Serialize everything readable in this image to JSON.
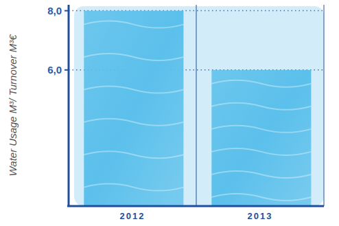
{
  "chart_data": {
    "type": "bar",
    "y_label": "Water Usage M³/ Turnover M³€",
    "categories": [
      "2012",
      "2013"
    ],
    "values": [
      8.0,
      6.0
    ],
    "color": "#5bc0eb",
    "ylim": [
      1.4,
      8.2
    ],
    "yticks": [
      {
        "value": 6,
        "label": "6,0"
      },
      {
        "value": 8,
        "label": "8,0"
      }
    ],
    "grid": true
  }
}
